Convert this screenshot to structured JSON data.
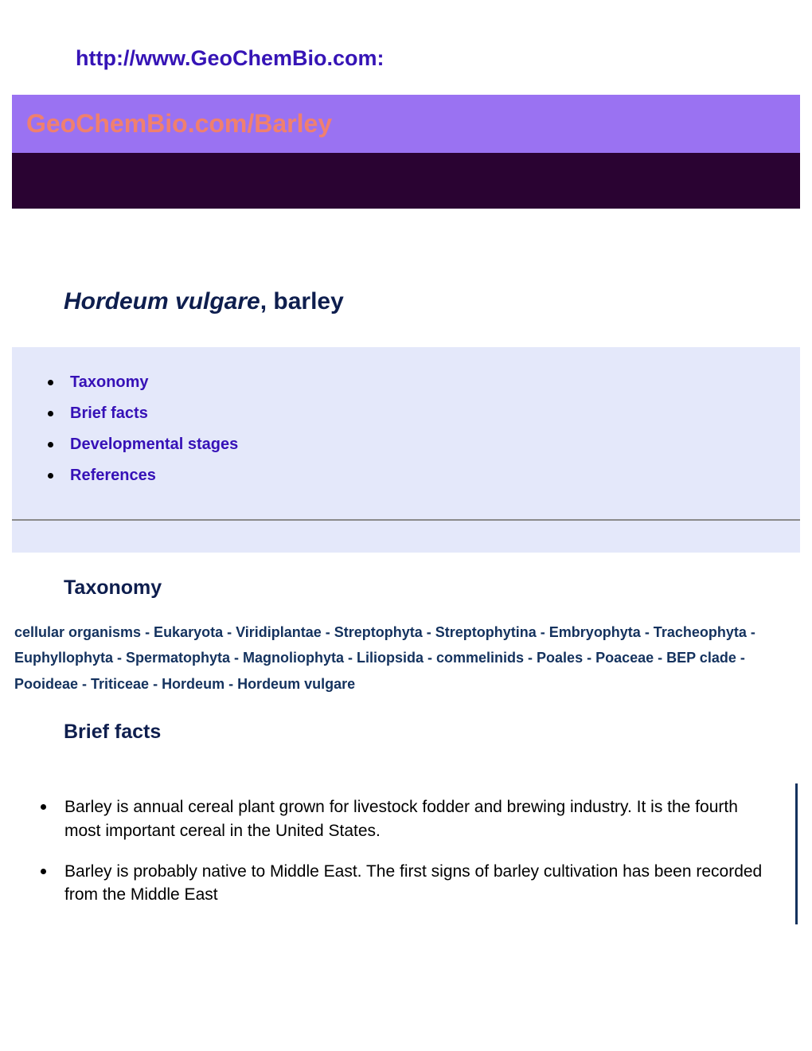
{
  "header": {
    "url": "http://www.GeoChemBio.com:"
  },
  "banner": {
    "title": "GeoChemBio.com/Barley",
    "topBg": "#9a72f2",
    "titleColor": "#f0806e",
    "bottomBg": "#2a0332"
  },
  "pageTitle": {
    "italic": "Hordeum vulgare",
    "rest": ", barley"
  },
  "nav": {
    "bg": "#e4e8fa",
    "linkColor": "#3611b7",
    "items": [
      {
        "label": "Taxonomy"
      },
      {
        "label": "Brief facts"
      },
      {
        "label": "Developmental stages"
      },
      {
        "label": "References"
      }
    ]
  },
  "sections": {
    "taxonomy": {
      "heading": "Taxonomy",
      "chain": "cellular organisms - Eukaryota - Viridiplantae - Streptophyta - Streptophytina - Embryophyta - Tracheophyta - Euphyllophyta - Spermatophyta - Magnoliophyta - Liliopsida - commelinids - Poales - Poaceae - BEP clade - Pooideae - Triticeae - Hordeum - Hordeum vulgare"
    },
    "briefFacts": {
      "heading": "Brief facts",
      "items": [
        "Barley is annual cereal plant grown for livestock fodder and brewing industry. It is the fourth most important cereal in the United States.",
        "Barley is probably native to Middle East. The first signs of barley cultivation has been recorded from the Middle East"
      ]
    }
  },
  "colors": {
    "headerUrl": "#3614b6",
    "darkHeading": "#0e1e4e",
    "taxonomyText": "#14325e"
  }
}
